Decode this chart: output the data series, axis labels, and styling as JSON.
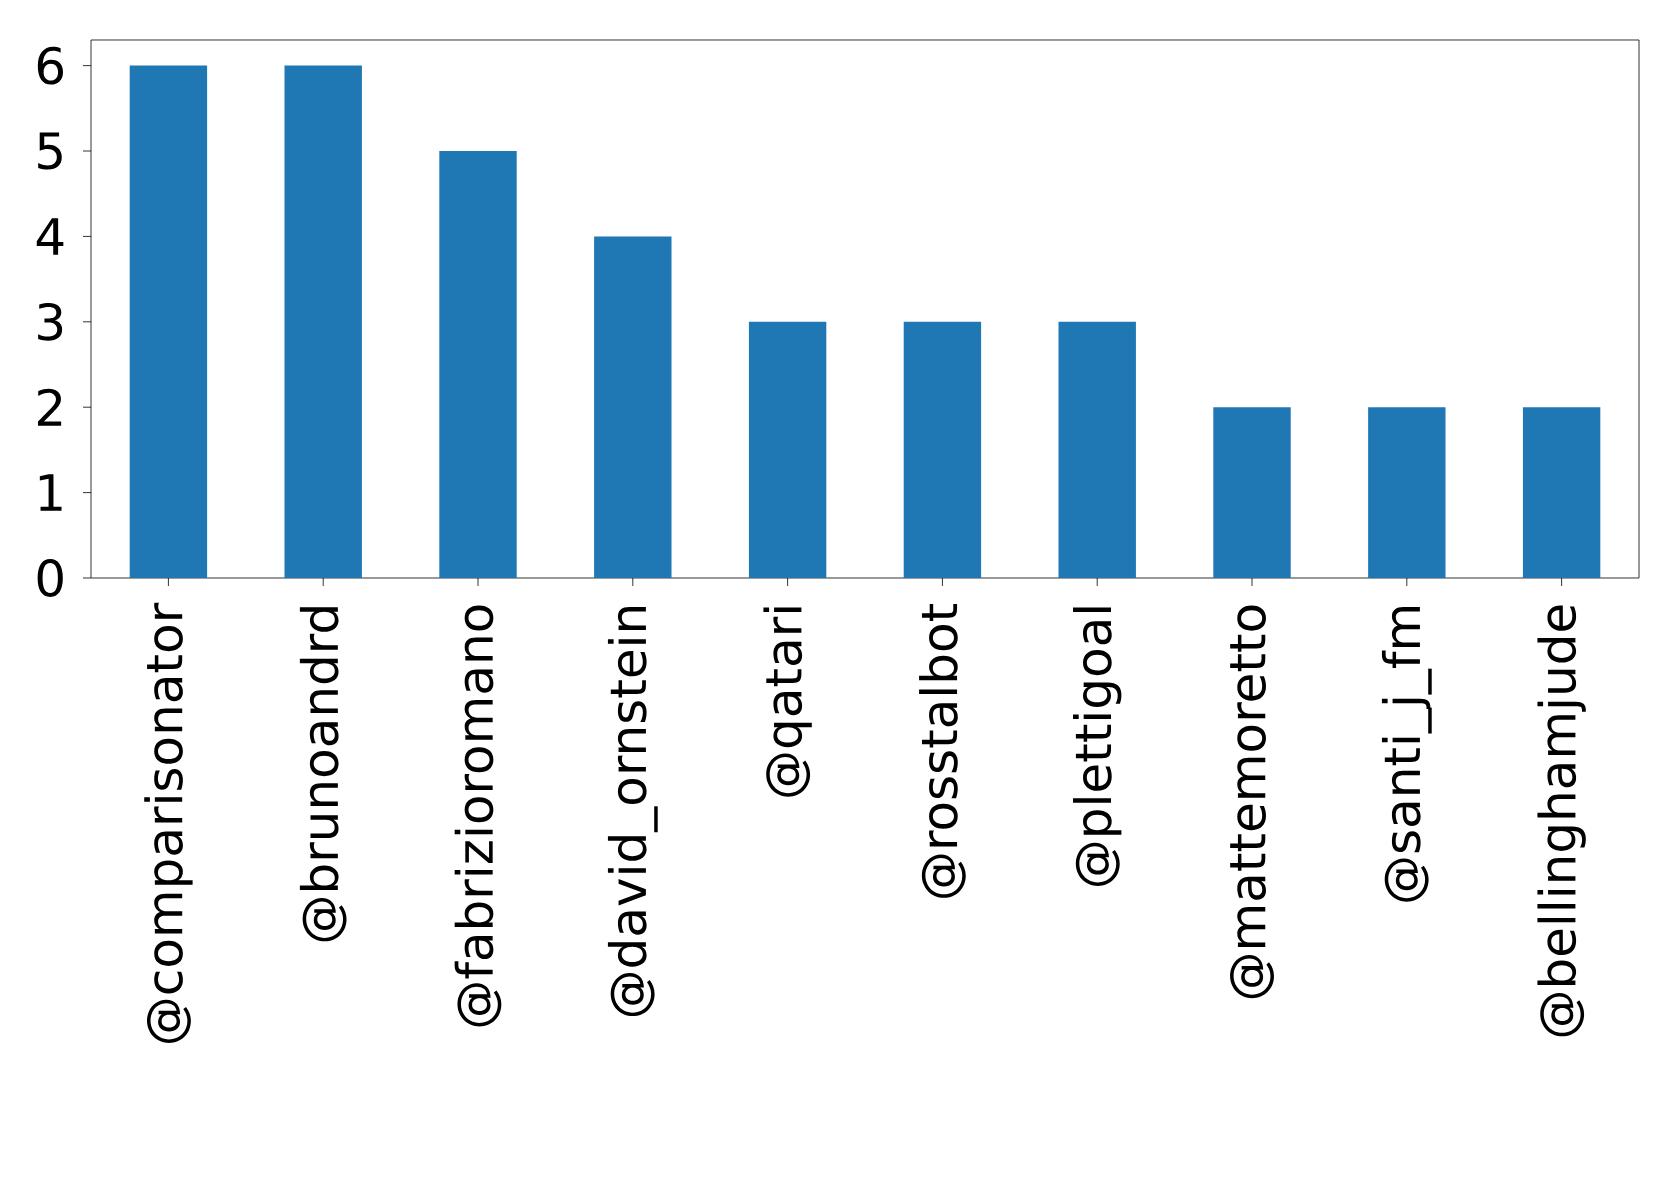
{
  "chart_data": {
    "type": "bar",
    "categories": [
      "@comparisonator",
      "@brunoandrd",
      "@fabrizioromano",
      "@david_ornstein",
      "@qatari",
      "@rosstalbot",
      "@plettigoal",
      "@mattemoretto",
      "@santi_j_fm",
      "@bellinghamjude"
    ],
    "values": [
      6,
      6,
      5,
      4,
      3,
      3,
      3,
      2,
      2,
      2
    ],
    "color": "#1f77b4",
    "ylim": [
      0,
      6.3
    ],
    "yticks": [
      0,
      1,
      2,
      3,
      4,
      5,
      6
    ]
  }
}
